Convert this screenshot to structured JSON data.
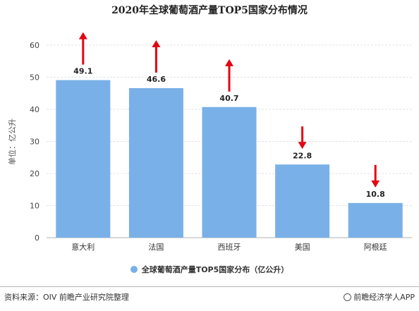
{
  "title": "2020年全球葡萄酒产量TOP5国家分布情况",
  "chart_data": {
    "type": "bar",
    "categories": [
      "意大利",
      "法国",
      "西班牙",
      "美国",
      "阿根廷"
    ],
    "values": [
      49.1,
      46.6,
      40.7,
      22.8,
      10.8
    ],
    "trends": [
      "up",
      "up",
      "up",
      "down",
      "down"
    ],
    "ylabel": "单位：亿公升",
    "ylim": [
      0,
      60
    ],
    "yticks": [
      0,
      10,
      20,
      30,
      40,
      50,
      60
    ],
    "grid": true,
    "legend_position": "bottom",
    "series": [
      {
        "name": "全球葡萄酒产量TOP5国家分布（亿公升）",
        "color": "#79b0e8"
      }
    ]
  },
  "arrow_color": "#e30613",
  "footer": {
    "source": "资料来源：OIV 前瞻产业研究院整理",
    "credit": "前瞻经济学人APP"
  }
}
